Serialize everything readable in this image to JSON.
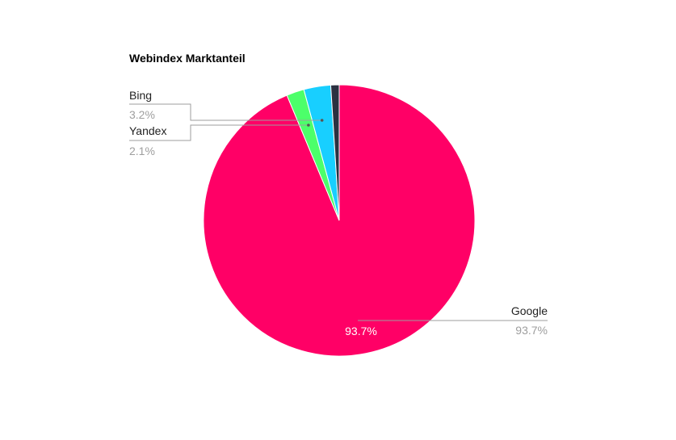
{
  "chart_data": {
    "type": "pie",
    "title": "Webindex Marktanteil",
    "slices": [
      {
        "name": "Google",
        "value": 93.7,
        "label": "93.7%",
        "inside_label": "93.7%",
        "color": "#ff0066"
      },
      {
        "name": "Yandex",
        "value": 2.1,
        "label": "2.1%",
        "color": "#4cff6a"
      },
      {
        "name": "Bing",
        "value": 3.2,
        "label": "3.2%",
        "color": "#18cfff"
      },
      {
        "name": "",
        "value": 1.0,
        "color": "#2b3141"
      }
    ]
  }
}
